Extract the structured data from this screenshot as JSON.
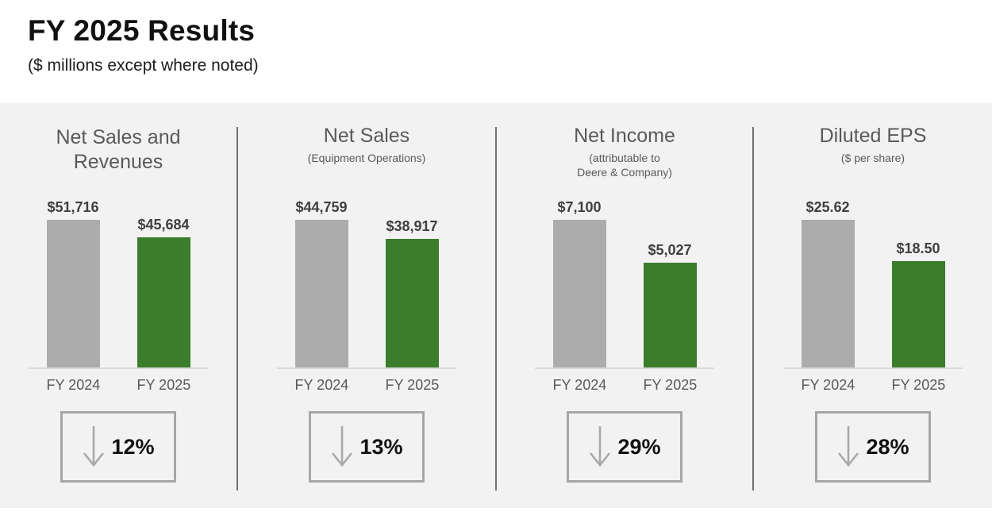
{
  "header": {
    "title": "FY 2025 Results",
    "subtitle": "($ millions except where noted)"
  },
  "colors": {
    "band_background": "#F2F2F2",
    "bar_fy2024": "#ACACAC",
    "bar_fy2025": "#3A7D2B",
    "panel_text": "#595959",
    "value_text": "#3F3F3F",
    "box_border": "#A6A6A6",
    "arrow": "#A9A9A9",
    "divider": "#6F6F6F"
  },
  "chart_data": [
    {
      "type": "bar",
      "title": "Net Sales and\nRevenues",
      "subtitle": "",
      "categories": [
        "FY 2024",
        "FY 2025"
      ],
      "values": [
        51716,
        45684
      ],
      "value_labels": [
        "$51,716",
        "$45,684"
      ],
      "bar_colors": [
        "#ACACAC",
        "#3A7D2B"
      ],
      "unit": "$ millions",
      "value_axis": "hidden",
      "change_direction": "down",
      "change_label": "12%"
    },
    {
      "type": "bar",
      "title": "Net Sales",
      "subtitle": "(Equipment Operations)",
      "categories": [
        "FY 2024",
        "FY 2025"
      ],
      "values": [
        44759,
        38917
      ],
      "value_labels": [
        "$44,759",
        "$38,917"
      ],
      "bar_colors": [
        "#ACACAC",
        "#3A7D2B"
      ],
      "unit": "$ millions",
      "value_axis": "hidden",
      "change_direction": "down",
      "change_label": "13%"
    },
    {
      "type": "bar",
      "title": "Net Income",
      "subtitle": "(attributable to\nDeere & Company)",
      "categories": [
        "FY 2024",
        "FY 2025"
      ],
      "values": [
        7100,
        5027
      ],
      "value_labels": [
        "$7,100",
        "$5,027"
      ],
      "bar_colors": [
        "#ACACAC",
        "#3A7D2B"
      ],
      "unit": "$ millions",
      "value_axis": "hidden",
      "change_direction": "down",
      "change_label": "29%"
    },
    {
      "type": "bar",
      "title": "Diluted EPS",
      "subtitle": "($ per share)",
      "categories": [
        "FY 2024",
        "FY 2025"
      ],
      "values": [
        25.62,
        18.5
      ],
      "value_labels": [
        "$25.62",
        "$18.50"
      ],
      "bar_colors": [
        "#ACACAC",
        "#3A7D2B"
      ],
      "unit": "$ per share",
      "value_axis": "hidden",
      "change_direction": "down",
      "change_label": "28%"
    }
  ]
}
